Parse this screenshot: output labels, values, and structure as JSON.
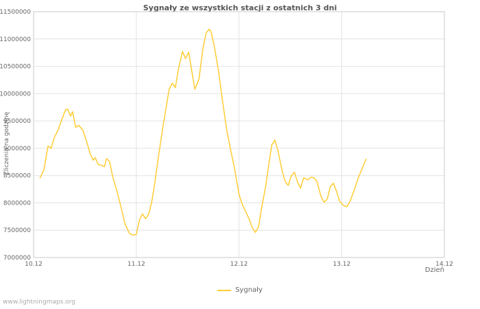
{
  "chart_data": {
    "type": "line",
    "title": "Sygnały ze wszystkich stacji z ostatnich 3 dni",
    "xlabel": "Dzień",
    "ylabel": "Zliczenia na godzinę",
    "x_ticks": [
      "10.12",
      "11.12",
      "12.12",
      "13.12",
      "14.12"
    ],
    "ylim": [
      7000000,
      11500000
    ],
    "y_ticks": [
      7000000,
      7500000,
      8000000,
      8500000,
      9000000,
      9500000,
      10000000,
      10500000,
      11000000,
      11500000
    ],
    "grid": true,
    "legend_position": "bottom",
    "series": [
      {
        "name": "Sygnały",
        "color": "#ffcc33",
        "points": [
          [
            0.06,
            8450000
          ],
          [
            0.1,
            8600000
          ],
          [
            0.14,
            9040000
          ],
          [
            0.17,
            9000000
          ],
          [
            0.2,
            9190000
          ],
          [
            0.24,
            9340000
          ],
          [
            0.27,
            9500000
          ],
          [
            0.31,
            9700000
          ],
          [
            0.33,
            9720000
          ],
          [
            0.36,
            9590000
          ],
          [
            0.38,
            9670000
          ],
          [
            0.41,
            9380000
          ],
          [
            0.44,
            9420000
          ],
          [
            0.48,
            9330000
          ],
          [
            0.52,
            9100000
          ],
          [
            0.55,
            8900000
          ],
          [
            0.58,
            8780000
          ],
          [
            0.6,
            8830000
          ],
          [
            0.63,
            8700000
          ],
          [
            0.66,
            8690000
          ],
          [
            0.69,
            8660000
          ],
          [
            0.71,
            8810000
          ],
          [
            0.74,
            8760000
          ],
          [
            0.77,
            8480000
          ],
          [
            0.81,
            8230000
          ],
          [
            0.85,
            7930000
          ],
          [
            0.89,
            7620000
          ],
          [
            0.93,
            7450000
          ],
          [
            0.96,
            7410000
          ],
          [
            1.0,
            7420000
          ],
          [
            1.03,
            7680000
          ],
          [
            1.06,
            7800000
          ],
          [
            1.09,
            7710000
          ],
          [
            1.12,
            7790000
          ],
          [
            1.15,
            8010000
          ],
          [
            1.18,
            8360000
          ],
          [
            1.22,
            8900000
          ],
          [
            1.26,
            9400000
          ],
          [
            1.29,
            9740000
          ],
          [
            1.32,
            10080000
          ],
          [
            1.35,
            10190000
          ],
          [
            1.38,
            10110000
          ],
          [
            1.41,
            10440000
          ],
          [
            1.45,
            10770000
          ],
          [
            1.48,
            10640000
          ],
          [
            1.51,
            10760000
          ],
          [
            1.54,
            10420000
          ],
          [
            1.57,
            10080000
          ],
          [
            1.61,
            10260000
          ],
          [
            1.65,
            10840000
          ],
          [
            1.68,
            11110000
          ],
          [
            1.71,
            11180000
          ],
          [
            1.73,
            11120000
          ],
          [
            1.76,
            10860000
          ],
          [
            1.8,
            10420000
          ],
          [
            1.84,
            9870000
          ],
          [
            1.88,
            9340000
          ],
          [
            1.92,
            8960000
          ],
          [
            1.96,
            8600000
          ],
          [
            2.0,
            8160000
          ],
          [
            2.03,
            7980000
          ],
          [
            2.06,
            7860000
          ],
          [
            2.1,
            7700000
          ],
          [
            2.13,
            7540000
          ],
          [
            2.16,
            7460000
          ],
          [
            2.19,
            7560000
          ],
          [
            2.22,
            7900000
          ],
          [
            2.26,
            8300000
          ],
          [
            2.29,
            8700000
          ],
          [
            2.32,
            9060000
          ],
          [
            2.35,
            9150000
          ],
          [
            2.38,
            8950000
          ],
          [
            2.42,
            8590000
          ],
          [
            2.45,
            8390000
          ],
          [
            2.48,
            8320000
          ],
          [
            2.51,
            8500000
          ],
          [
            2.54,
            8560000
          ],
          [
            2.57,
            8380000
          ],
          [
            2.6,
            8270000
          ],
          [
            2.63,
            8460000
          ],
          [
            2.67,
            8420000
          ],
          [
            2.7,
            8470000
          ],
          [
            2.73,
            8460000
          ],
          [
            2.76,
            8390000
          ],
          [
            2.8,
            8110000
          ],
          [
            2.83,
            8010000
          ],
          [
            2.86,
            8070000
          ],
          [
            2.89,
            8300000
          ],
          [
            2.92,
            8360000
          ],
          [
            2.95,
            8210000
          ],
          [
            2.98,
            8030000
          ],
          [
            3.02,
            7950000
          ],
          [
            3.05,
            7930000
          ],
          [
            3.08,
            8020000
          ],
          [
            3.12,
            8220000
          ],
          [
            3.16,
            8450000
          ],
          [
            3.2,
            8630000
          ],
          [
            3.24,
            8810000
          ]
        ]
      }
    ]
  },
  "footer": {
    "watermark": "www.lightningmaps.org"
  }
}
